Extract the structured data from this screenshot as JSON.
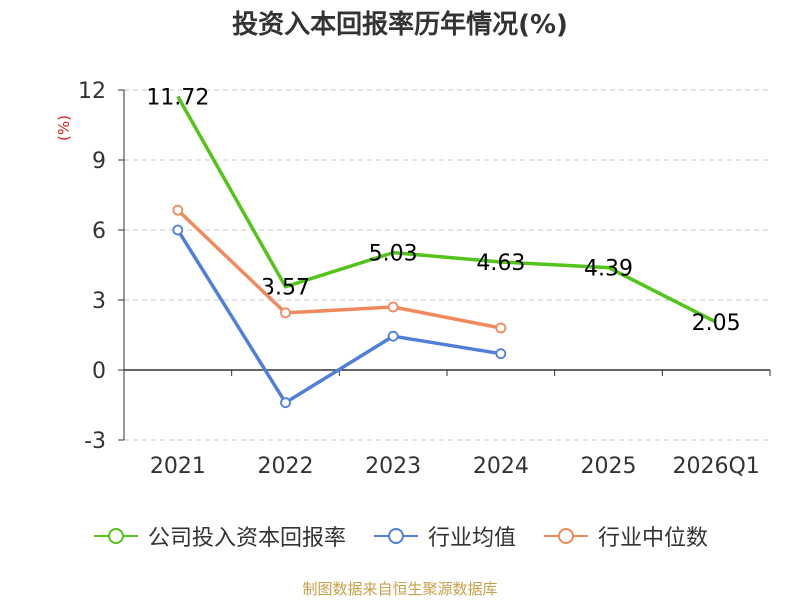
{
  "title": "投资入本回报率历年情况(%)",
  "source": "制图数据来自恒生聚源数据库",
  "colors": {
    "company": "#52c41a",
    "avg": "#4f7fd9",
    "median": "#f08a5d",
    "grid": "#c8c8c8",
    "axis": "#333333",
    "ylabel": "#d42020"
  },
  "chart_data": {
    "type": "line",
    "title": "投资入本回报率历年情况(%)",
    "ylabel": "(%)",
    "xlabel": "",
    "categories": [
      "2021",
      "2022",
      "2023",
      "2024",
      "2025",
      "2026Q1"
    ],
    "ylim": [
      -3,
      12
    ],
    "yticks": [
      -3,
      0,
      3,
      6,
      9,
      12
    ],
    "grid": true,
    "legend": "bottom",
    "series": [
      {
        "name": "公司投入资本回报率",
        "values": [
          11.72,
          3.57,
          5.03,
          4.63,
          4.39,
          2.05
        ],
        "labels": [
          "11.72",
          "3.57",
          "5.03",
          "4.63",
          "4.39",
          "2.05"
        ],
        "color": "#52c41a",
        "marker": "none"
      },
      {
        "name": "行业均值",
        "values": [
          6.0,
          -1.4,
          1.45,
          0.7,
          null,
          null
        ],
        "color": "#4f7fd9",
        "marker": "circle"
      },
      {
        "name": "行业中位数",
        "values": [
          6.85,
          2.45,
          2.7,
          1.8,
          null,
          null
        ],
        "color": "#f08a5d",
        "marker": "circle"
      }
    ]
  }
}
